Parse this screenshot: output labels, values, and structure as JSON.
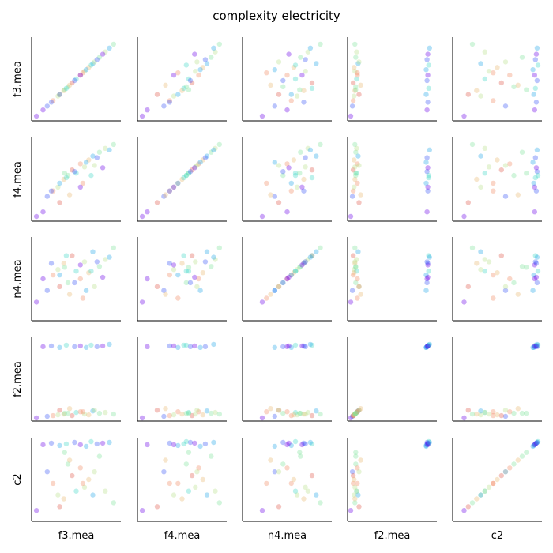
{
  "chart_data": {
    "type": "scatter",
    "title": "complexity electricity",
    "variables": [
      "f3.mea",
      "f4.mea",
      "n4.mea",
      "f2.mea",
      "c2"
    ],
    "xlabels": [
      "f3.mea",
      "f4.mea",
      "n4.mea",
      "f2.mea",
      "c2"
    ],
    "ylabels": [
      "f3.mea",
      "f4.mea",
      "n4.mea",
      "f2.mea",
      "c2"
    ],
    "grid": false,
    "legend": "none",
    "colors": [
      "#6a00e8",
      "#3a55f5",
      "#22a6e8",
      "#3fd6c6",
      "#7ee39a",
      "#b8e08a",
      "#e8b870",
      "#f08a60",
      "#e05a4a"
    ],
    "rows": [
      {
        "f3.mea": 0.02,
        "f4.mea": 0.02,
        "n4.mea": 0.2,
        "f2.mea": 0.0,
        "c2": 0.1,
        "c": 0
      },
      {
        "f3.mea": 0.15,
        "f4.mea": 0.28,
        "n4.mea": 0.35,
        "f2.mea": 0.02,
        "c2": 0.6,
        "c": 1
      },
      {
        "f3.mea": 0.22,
        "f4.mea": 0.35,
        "n4.mea": 0.55,
        "f2.mea": 0.03,
        "c2": 0.45,
        "c": 7
      },
      {
        "f3.mea": 0.28,
        "f4.mea": 0.4,
        "n4.mea": 0.62,
        "f2.mea": 0.04,
        "c2": 0.3,
        "c": 5
      },
      {
        "f3.mea": 0.35,
        "f4.mea": 0.5,
        "n4.mea": 0.7,
        "f2.mea": 0.05,
        "c2": 0.25,
        "c": 6
      },
      {
        "f3.mea": 0.4,
        "f4.mea": 0.55,
        "n4.mea": 0.45,
        "f2.mea": 0.06,
        "c2": 0.7,
        "c": 4
      },
      {
        "f3.mea": 0.45,
        "f4.mea": 0.62,
        "n4.mea": 0.8,
        "f2.mea": 0.03,
        "c2": 0.55,
        "c": 8
      },
      {
        "f3.mea": 0.5,
        "f4.mea": 0.58,
        "n4.mea": 0.6,
        "f2.mea": 0.07,
        "c2": 0.35,
        "c": 3
      },
      {
        "f3.mea": 0.55,
        "f4.mea": 0.7,
        "n4.mea": 0.5,
        "f2.mea": 0.08,
        "c2": 0.65,
        "c": 7
      },
      {
        "f3.mea": 0.6,
        "f4.mea": 0.66,
        "n4.mea": 0.72,
        "f2.mea": 0.05,
        "c2": 0.4,
        "c": 5
      },
      {
        "f3.mea": 0.65,
        "f4.mea": 0.75,
        "n4.mea": 0.58,
        "f2.mea": 0.04,
        "c2": 0.5,
        "c": 6
      },
      {
        "f3.mea": 0.7,
        "f4.mea": 0.8,
        "n4.mea": 0.85,
        "f2.mea": 0.09,
        "c2": 0.3,
        "c": 2
      },
      {
        "f3.mea": 0.78,
        "f4.mea": 0.85,
        "n4.mea": 0.66,
        "f2.mea": 0.06,
        "c2": 0.8,
        "c": 4
      },
      {
        "f3.mea": 0.85,
        "f4.mea": 0.9,
        "n4.mea": 0.75,
        "f2.mea": 0.07,
        "c2": 0.35,
        "c": 5
      },
      {
        "f3.mea": 0.95,
        "f4.mea": 0.95,
        "n4.mea": 0.9,
        "f2.mea": 0.05,
        "c2": 0.2,
        "c": 4
      },
      {
        "f3.mea": 0.3,
        "f4.mea": 0.2,
        "n4.mea": 0.4,
        "f2.mea": 0.1,
        "c2": 0.15,
        "c": 8
      },
      {
        "f3.mea": 0.42,
        "f4.mea": 0.3,
        "n4.mea": 0.3,
        "f2.mea": 0.12,
        "c2": 0.75,
        "c": 6
      },
      {
        "f3.mea": 0.58,
        "f4.mea": 0.45,
        "n4.mea": 0.25,
        "f2.mea": 0.08,
        "c2": 0.45,
        "c": 7
      },
      {
        "f3.mea": 0.72,
        "f4.mea": 0.68,
        "n4.mea": 0.4,
        "f2.mea": 0.1,
        "c2": 0.6,
        "c": 5
      },
      {
        "f3.mea": 0.36,
        "f4.mea": 0.58,
        "n4.mea": 0.65,
        "f2.mea": 0.06,
        "c2": 0.85,
        "c": 4
      },
      {
        "f3.mea": 0.1,
        "f4.mea": 0.08,
        "n4.mea": 0.5,
        "f2.mea": 0.92,
        "c2": 0.95,
        "c": 0
      },
      {
        "f3.mea": 0.2,
        "f4.mea": 0.35,
        "n4.mea": 0.7,
        "f2.mea": 0.93,
        "c2": 0.97,
        "c": 1
      },
      {
        "f3.mea": 0.3,
        "f4.mea": 0.45,
        "n4.mea": 0.55,
        "f2.mea": 0.91,
        "c2": 0.94,
        "c": 2
      },
      {
        "f3.mea": 0.38,
        "f4.mea": 0.52,
        "n4.mea": 0.8,
        "f2.mea": 0.94,
        "c2": 0.96,
        "c": 3
      },
      {
        "f3.mea": 0.48,
        "f4.mea": 0.6,
        "n4.mea": 0.45,
        "f2.mea": 0.92,
        "c2": 0.98,
        "c": 1
      },
      {
        "f3.mea": 0.55,
        "f4.mea": 0.4,
        "n4.mea": 0.68,
        "f2.mea": 0.93,
        "c2": 0.95,
        "c": 0
      },
      {
        "f3.mea": 0.62,
        "f4.mea": 0.72,
        "n4.mea": 0.35,
        "f2.mea": 0.91,
        "c2": 0.93,
        "c": 2
      },
      {
        "f3.mea": 0.68,
        "f4.mea": 0.55,
        "n4.mea": 0.6,
        "f2.mea": 0.94,
        "c2": 0.99,
        "c": 3
      },
      {
        "f3.mea": 0.75,
        "f4.mea": 0.78,
        "n4.mea": 0.72,
        "f2.mea": 0.92,
        "c2": 0.96,
        "c": 1
      },
      {
        "f3.mea": 0.82,
        "f4.mea": 0.65,
        "n4.mea": 0.52,
        "f2.mea": 0.93,
        "c2": 0.97,
        "c": 0
      },
      {
        "f3.mea": 0.9,
        "f4.mea": 0.88,
        "n4.mea": 0.78,
        "f2.mea": 0.95,
        "c2": 0.98,
        "c": 2
      }
    ]
  }
}
